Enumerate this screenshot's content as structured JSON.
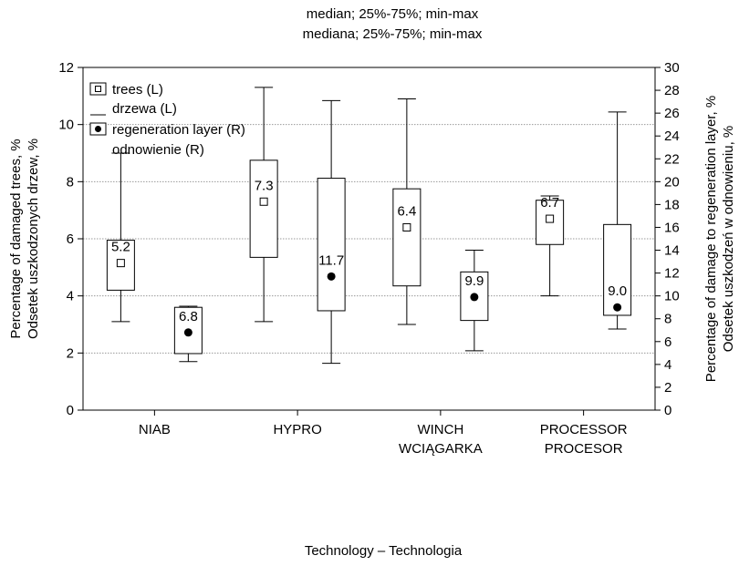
{
  "chart_data": {
    "type": "box",
    "title": [
      "median; 25%-75%; min-max",
      "mediana; 25%-75%; min-max"
    ],
    "xlabel": "Technology – Technologia",
    "ylabel_left": [
      "Percentage of damaged trees, %",
      "Odsetek uszkodzonych drzew, %"
    ],
    "ylabel_right": [
      "Percentage of damage to regeneration layer, %",
      "Odsetek uszkodzeń w odnowieniu, %"
    ],
    "ylim_left": [
      0,
      12
    ],
    "yticks_left": [
      "0",
      "2",
      "4",
      "6",
      "8",
      "10",
      "12"
    ],
    "ylim_right": [
      0,
      30
    ],
    "yticks_right": [
      "0",
      "2",
      "4",
      "6",
      "8",
      "10",
      "12",
      "14",
      "16",
      "18",
      "20",
      "22",
      "24",
      "26",
      "28",
      "30"
    ],
    "gridlines_left": [
      2,
      4,
      6,
      8,
      10
    ],
    "categories": [
      [
        "NIAB"
      ],
      [
        "HYPRO"
      ],
      [
        "WINCH",
        "WCIĄGARKA"
      ],
      [
        "PROCESSOR",
        "PROCESOR"
      ]
    ],
    "legend": {
      "placement": "top-left",
      "items": [
        [
          "trees (L)",
          "drzewa (L)"
        ],
        [
          "regeneration layer (R)",
          "odnowienie (R)"
        ]
      ]
    },
    "series": [
      {
        "name": "trees (L)",
        "axis": "left",
        "marker": "square",
        "data": [
          {
            "min": 3.1,
            "q1": 4.2,
            "median": 5.15,
            "q3": 5.95,
            "max": 9.0,
            "label": "5.2"
          },
          {
            "min": 3.1,
            "q1": 5.35,
            "median": 7.3,
            "q3": 8.75,
            "max": 11.3,
            "label": "7.3"
          },
          {
            "min": 3.0,
            "q1": 4.35,
            "median": 6.4,
            "q3": 7.75,
            "max": 10.9,
            "label": "6.4"
          },
          {
            "min": 4.0,
            "q1": 5.8,
            "median": 6.7,
            "q3": 7.35,
            "max": 7.5,
            "label": "6.7"
          }
        ]
      },
      {
        "name": "regeneration layer (R)",
        "axis": "right",
        "marker": "dot",
        "data": [
          {
            "min": 4.25,
            "q1": 4.95,
            "median": 6.8,
            "q3": 9.0,
            "max": 9.1,
            "label": "6.8"
          },
          {
            "min": 4.1,
            "q1": 8.7,
            "median": 11.7,
            "q3": 20.3,
            "max": 27.1,
            "label": "11.7"
          },
          {
            "min": 5.2,
            "q1": 7.85,
            "median": 9.9,
            "q3": 12.1,
            "max": 14.0,
            "label": "9.9"
          },
          {
            "min": 7.1,
            "q1": 8.3,
            "median": 9.0,
            "q3": 16.25,
            "max": 26.1,
            "label": "9.0"
          }
        ]
      }
    ]
  }
}
